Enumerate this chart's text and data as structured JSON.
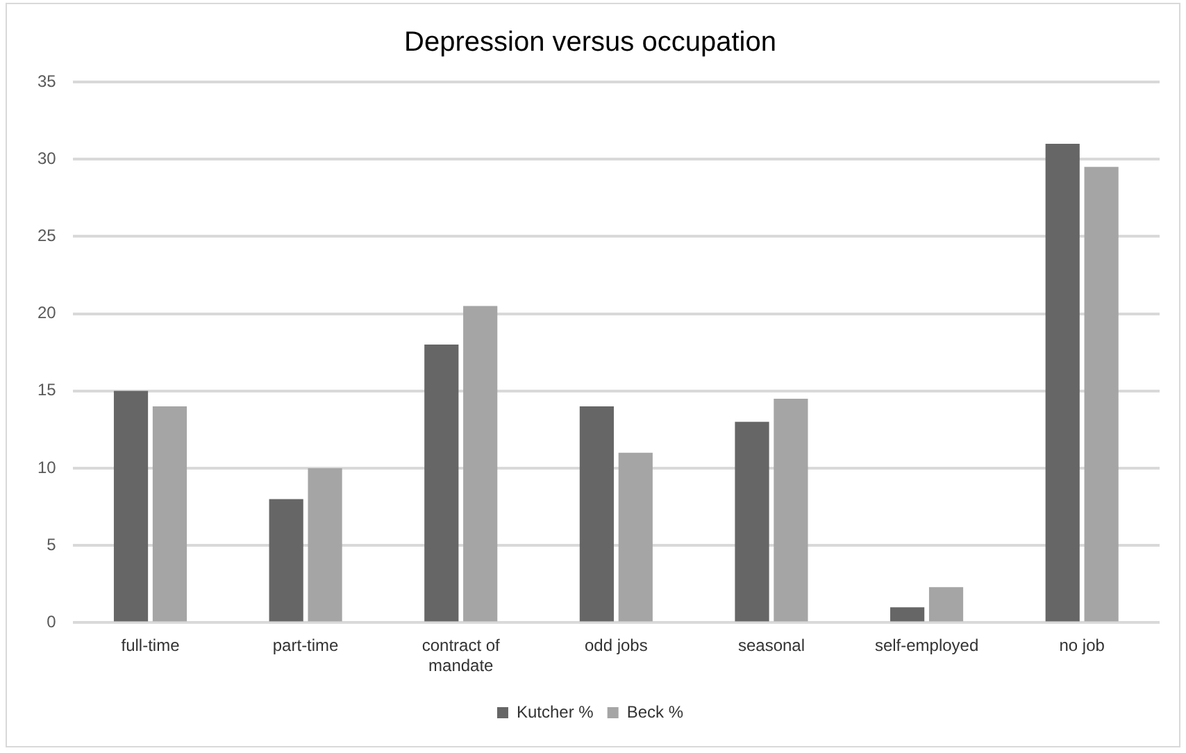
{
  "chart_data": {
    "type": "bar",
    "title": "Depression versus occupation",
    "categories": [
      "full-time",
      "part-time",
      "contract of mandate",
      "odd jobs",
      "seasonal",
      "self-employed",
      "no job"
    ],
    "series": [
      {
        "name": "Kutcher %",
        "color": "#666666",
        "values": [
          15,
          8,
          18,
          14,
          13,
          1,
          31
        ]
      },
      {
        "name": "Beck %",
        "color": "#a5a5a5",
        "values": [
          14,
          10,
          20.5,
          11,
          14.5,
          2.3,
          29.5
        ]
      }
    ],
    "ylim": [
      0,
      35
    ],
    "yticks": [
      0,
      5,
      10,
      15,
      20,
      25,
      30,
      35
    ],
    "grid": "y",
    "legend": "bottom"
  }
}
